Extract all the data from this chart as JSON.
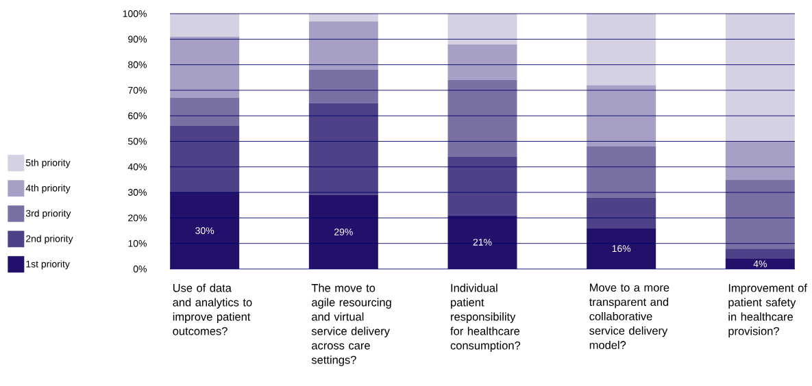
{
  "chart_data": {
    "type": "bar",
    "stacked": true,
    "categories": [
      "Use of data and analytics to improve patient outcomes?",
      "The move to agile resourcing and virtual service delivery across care settings?",
      "Individual patient responsibility for healthcare consumption?",
      "Move to a more transparent and collaborative service delivery model?",
      "Improvement of patient safety in healthcare provision?"
    ],
    "series": [
      {
        "name": "1st priority",
        "color": "#22106a",
        "values": [
          30,
          29,
          21,
          16,
          4
        ],
        "value_labels": [
          "30%",
          "29%",
          "21%",
          "16%",
          "4%"
        ]
      },
      {
        "name": "2nd priority",
        "color": "#4e4187",
        "values": [
          26,
          36,
          23,
          12,
          4
        ]
      },
      {
        "name": "3rd priority",
        "color": "#7970a4",
        "values": [
          11,
          13,
          30,
          20,
          27
        ]
      },
      {
        "name": "4th priority",
        "color": "#a79fc5",
        "values": [
          24,
          19,
          14,
          24,
          15
        ]
      },
      {
        "name": "5th priority",
        "color": "#d4d1e3",
        "values": [
          9,
          3,
          12,
          28,
          50
        ]
      }
    ],
    "ylim": [
      0,
      100
    ],
    "yticks": [
      {
        "value": 0,
        "label": "0%"
      },
      {
        "value": 10,
        "label": "10%"
      },
      {
        "value": 20,
        "label": "20%"
      },
      {
        "value": 30,
        "label": "30%"
      },
      {
        "value": 40,
        "label": "40%"
      },
      {
        "value": 50,
        "label": "50%"
      },
      {
        "value": 60,
        "label": "60%"
      },
      {
        "value": 70,
        "label": "70%"
      },
      {
        "value": 80,
        "label": "80%"
      },
      {
        "value": 90,
        "label": "90%"
      },
      {
        "value": 100,
        "label": "100%"
      }
    ],
    "grid": "y",
    "legend": "left"
  }
}
